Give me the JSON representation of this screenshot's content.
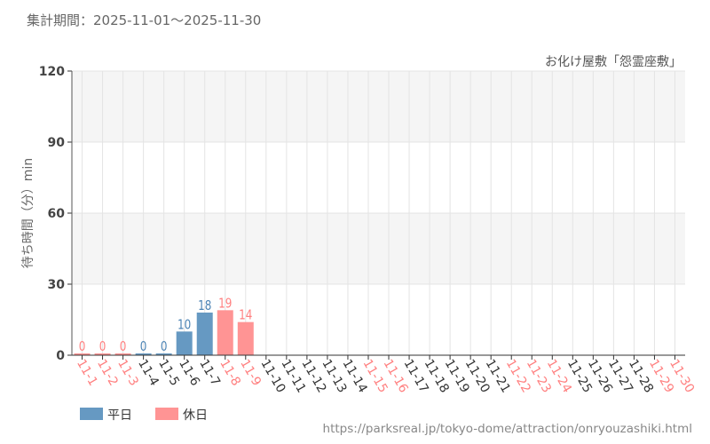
{
  "period_label": "集計期間：2025-11-01～2025-11-30",
  "source_url": "https://parksreal.jp/tokyo-dome/attraction/onryouzashiki.html",
  "colors": {
    "weekday": "#6699c2",
    "holiday": "#ff9494",
    "weekday_text": "#4d84b5",
    "holiday_text": "#ff7f7f"
  },
  "chart_data": {
    "type": "bar",
    "title": "お化け屋敷「怨霊座敷」",
    "ylabel": "待ち時間（分）min",
    "ylim": [
      0,
      120
    ],
    "yticks": [
      "0",
      "30",
      "60",
      "90",
      "120"
    ],
    "grid": true,
    "legend_position": "bottom-left",
    "legend": [
      {
        "label": "平日",
        "key": "weekday"
      },
      {
        "label": "休日",
        "key": "holiday"
      }
    ],
    "categories": [
      "11-1",
      "11-2",
      "11-3",
      "11-4",
      "11-5",
      "11-6",
      "11-7",
      "11-8",
      "11-9",
      "11-10",
      "11-11",
      "11-12",
      "11-13",
      "11-14",
      "11-15",
      "11-16",
      "11-17",
      "11-18",
      "11-19",
      "11-20",
      "11-21",
      "11-22",
      "11-23",
      "11-24",
      "11-25",
      "11-26",
      "11-27",
      "11-28",
      "11-29",
      "11-30"
    ],
    "day_type": [
      "holiday",
      "holiday",
      "holiday",
      "weekday",
      "weekday",
      "weekday",
      "weekday",
      "holiday",
      "holiday",
      "weekday",
      "weekday",
      "weekday",
      "weekday",
      "weekday",
      "holiday",
      "holiday",
      "weekday",
      "weekday",
      "weekday",
      "weekday",
      "weekday",
      "holiday",
      "holiday",
      "holiday",
      "weekday",
      "weekday",
      "weekday",
      "weekday",
      "holiday",
      "holiday"
    ],
    "values": [
      0,
      0,
      0,
      0,
      0,
      10,
      18,
      19,
      14,
      null,
      null,
      null,
      null,
      null,
      null,
      null,
      null,
      null,
      null,
      null,
      null,
      null,
      null,
      null,
      null,
      null,
      null,
      null,
      null,
      null
    ]
  }
}
